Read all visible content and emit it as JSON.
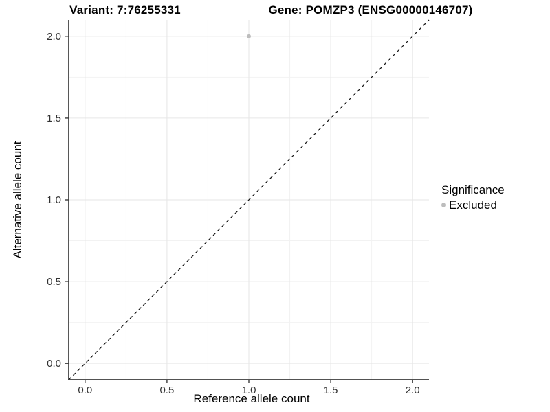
{
  "chart_data": {
    "type": "scatter",
    "title_left": "Variant: 7:76255331",
    "title_right": "Gene: POMZP3 (ENSG00000146707)",
    "xlabel": "Reference allele count",
    "ylabel": "Alternative allele count",
    "xlim": [
      -0.1,
      2.1
    ],
    "ylim": [
      -0.1,
      2.1
    ],
    "x_ticks": [
      0,
      0.5,
      1,
      1.5,
      2
    ],
    "x_tick_labels": [
      "0.0",
      "0.5",
      "1.0",
      "1.5",
      "2.0"
    ],
    "y_ticks": [
      0,
      0.5,
      1,
      1.5,
      2
    ],
    "y_tick_labels": [
      "0.0",
      "0.5",
      "1.0",
      "1.5",
      "2.0"
    ],
    "x_minor_ticks": [
      0.25,
      0.75,
      1.25,
      1.75
    ],
    "y_minor_ticks": [
      0.25,
      0.75,
      1.25,
      1.75
    ],
    "grid": true,
    "points": [
      {
        "x": 1.0,
        "y": 2.0,
        "series": "Excluded"
      }
    ],
    "identity_line": {
      "slope": 1,
      "intercept": 0,
      "style": "dashed"
    },
    "legend": {
      "title": "Significance",
      "position": "right",
      "items": [
        {
          "label": "Excluded",
          "color": "#bdbdbd"
        }
      ]
    },
    "colors": {
      "point": "#bdbdbd",
      "identity_line": "#1a1a1a",
      "grid_major": "#e6e6e6",
      "grid_minor": "#f2f2f2",
      "axis_line": "#3a3a3a",
      "tick_mark": "#3a3a3a",
      "tick_label": "#333333",
      "background": "#ffffff"
    }
  }
}
